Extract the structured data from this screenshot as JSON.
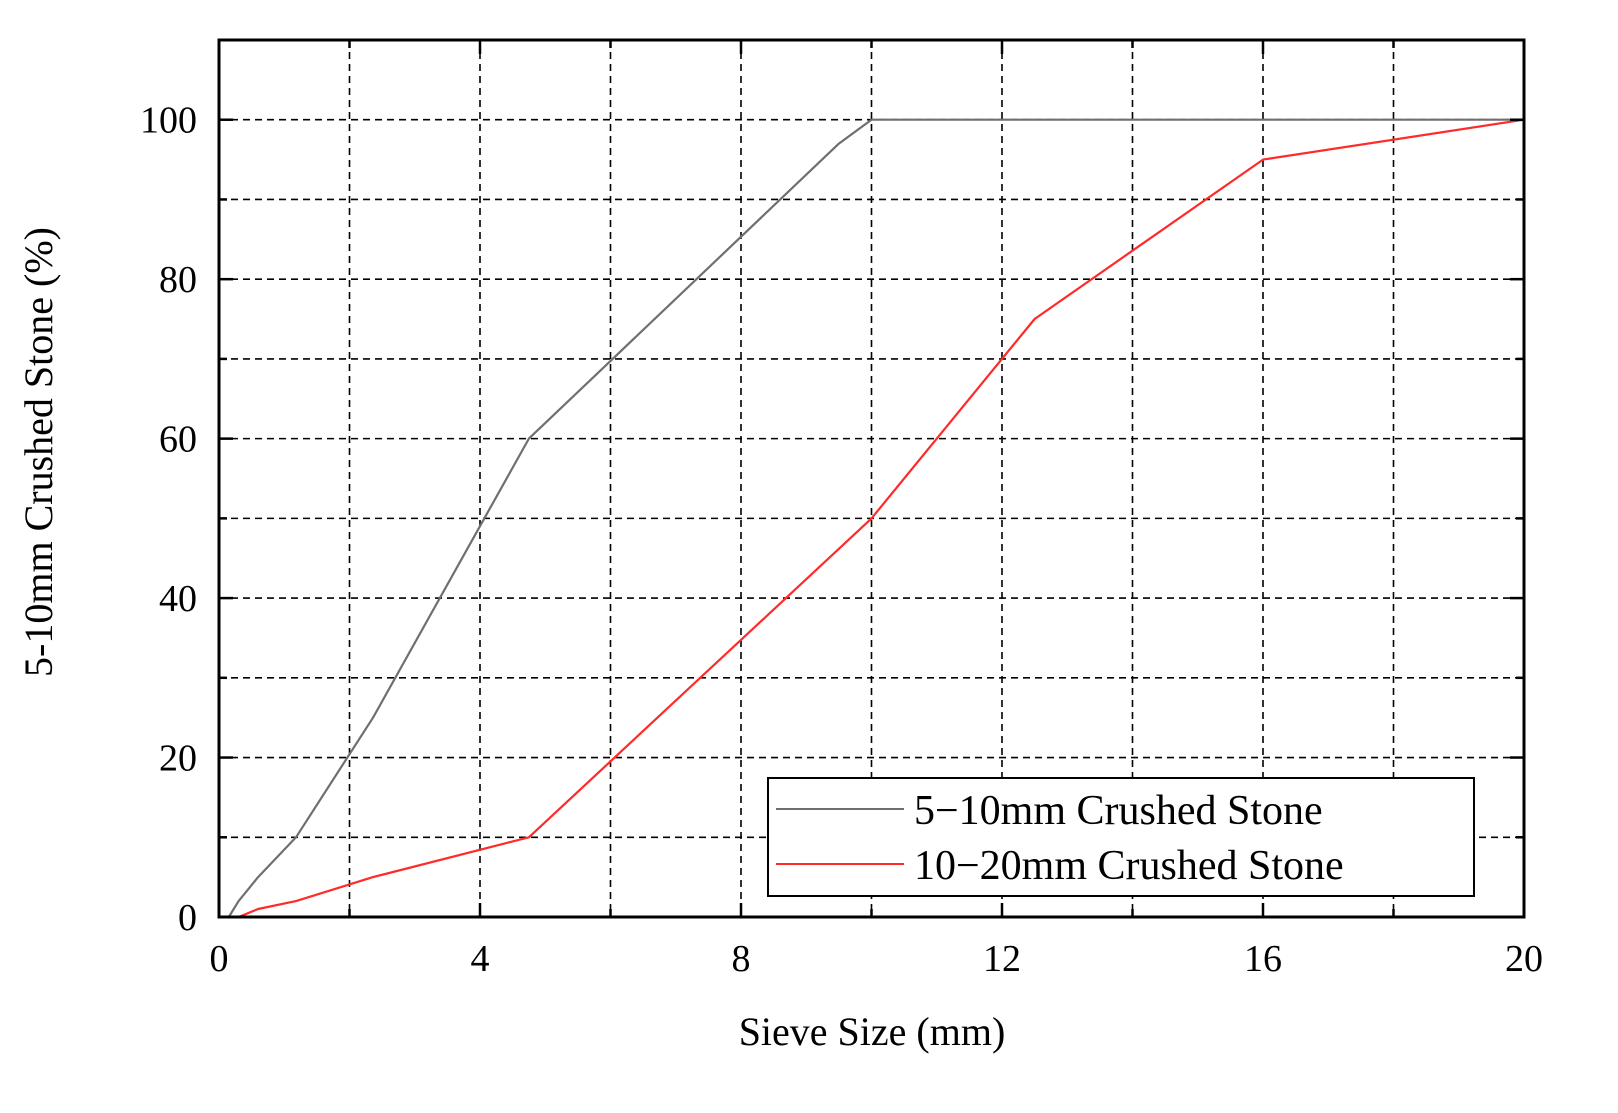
{
  "chart_data": {
    "type": "line",
    "xlabel": "Sieve Size (mm)",
    "ylabel": "5-10mm Crushed Stone (%)",
    "xlim": [
      0,
      20
    ],
    "ylim": [
      0,
      110
    ],
    "xticks": [
      0,
      4,
      8,
      12,
      16,
      20
    ],
    "yticks": [
      0,
      20,
      40,
      60,
      80,
      100
    ],
    "grid": true,
    "legend": "bottom-right",
    "series": [
      {
        "name": "5−10mm Crushed Stone",
        "color": "#6f6f6f",
        "x": [
          0.15,
          0.3,
          0.6,
          1.18,
          2.36,
          4.75,
          9.5,
          10,
          20
        ],
        "y": [
          0,
          2,
          5,
          10,
          25,
          60,
          97,
          100,
          100
        ]
      },
      {
        "name": "10−20mm Crushed Stone",
        "color": "#ff2a2a",
        "x": [
          0.15,
          0.3,
          0.6,
          1.18,
          2.36,
          4.75,
          10,
          12.5,
          16,
          20
        ],
        "y": [
          0,
          0,
          1,
          2,
          5,
          10,
          50,
          75,
          95,
          100
        ]
      }
    ]
  }
}
